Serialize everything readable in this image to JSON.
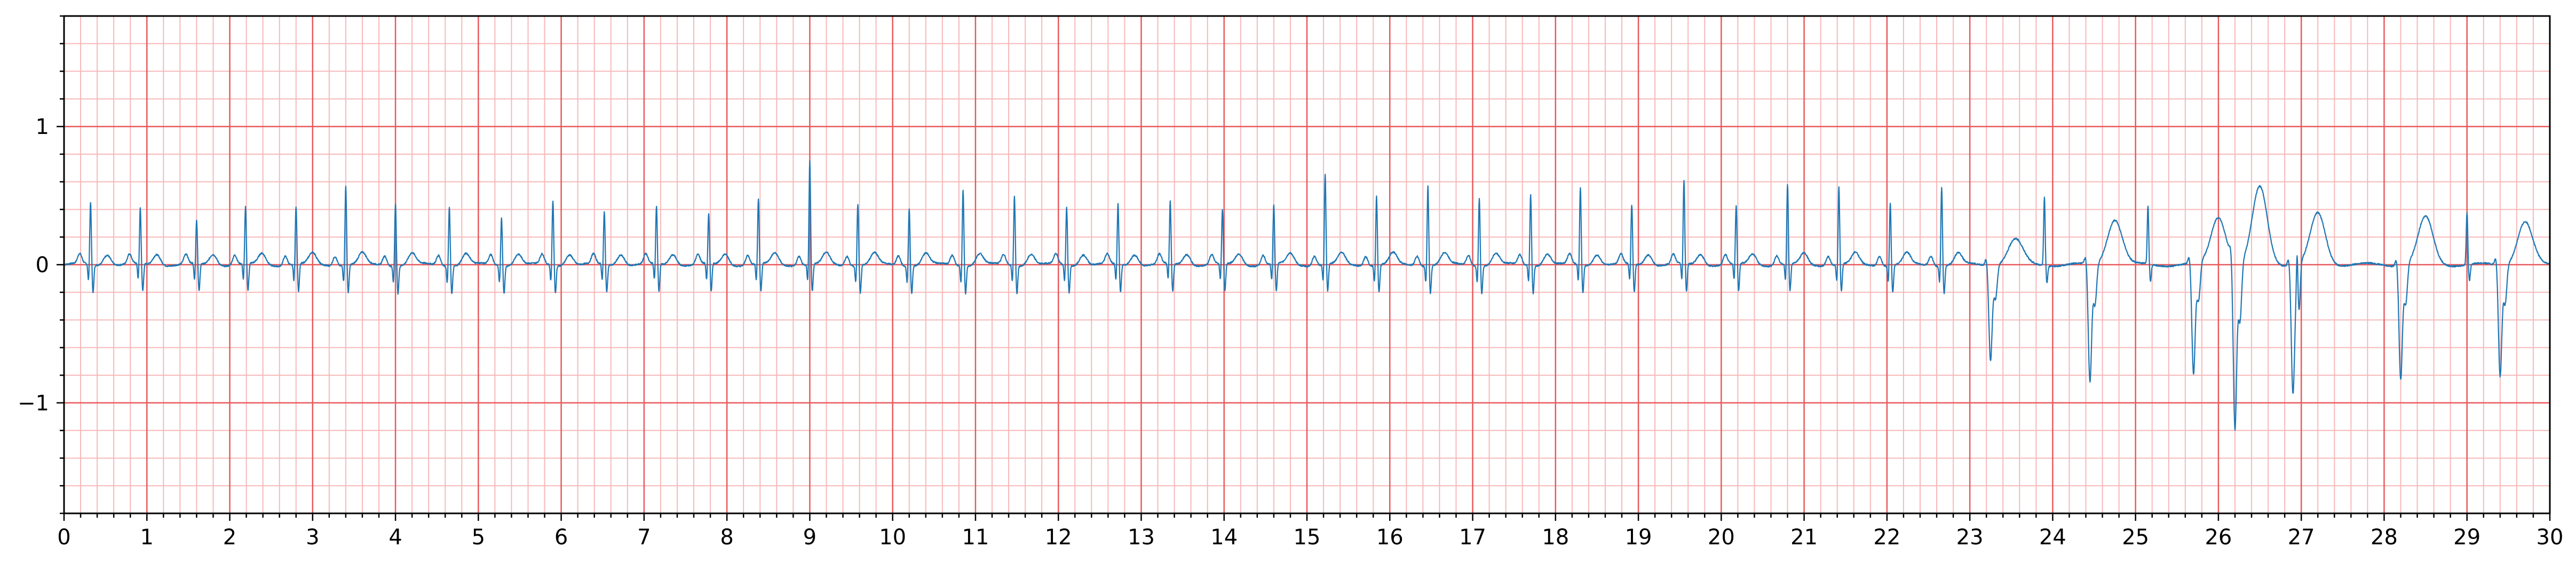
{
  "chart_data": {
    "type": "line",
    "title": "",
    "xlabel": "",
    "ylabel": "",
    "xlim": [
      0,
      30
    ],
    "ylim": [
      -1.8,
      1.8
    ],
    "x_ticks": [
      "0",
      "1",
      "2",
      "3",
      "4",
      "5",
      "6",
      "7",
      "8",
      "9",
      "10",
      "11",
      "12",
      "13",
      "14",
      "15",
      "16",
      "17",
      "18",
      "19",
      "20",
      "21",
      "22",
      "23",
      "24",
      "25",
      "26",
      "27",
      "28",
      "29",
      "30"
    ],
    "y_ticks": [
      "1",
      "0",
      "−1"
    ],
    "y_tick_values": [
      1,
      0,
      -1
    ],
    "grid": {
      "major": true,
      "minor": true,
      "major_step": 1,
      "minor_step": 0.2,
      "style": "ECG paper"
    },
    "colors": {
      "trace": "#1f77b4",
      "major_grid": "#e8595c",
      "minor_grid": "#f7b8b9",
      "axis": "#000000"
    },
    "series": [
      {
        "beats_r_peak": [
          [
            0.32,
            0.45
          ],
          [
            0.92,
            0.4
          ],
          [
            1.6,
            0.31
          ],
          [
            2.19,
            0.41
          ],
          [
            2.8,
            0.42
          ],
          [
            3.4,
            0.58
          ],
          [
            4.0,
            0.45
          ],
          [
            4.65,
            0.43
          ],
          [
            5.28,
            0.35
          ],
          [
            5.9,
            0.47
          ],
          [
            6.52,
            0.38
          ],
          [
            7.15,
            0.42
          ],
          [
            7.78,
            0.36
          ],
          [
            8.38,
            0.47
          ],
          [
            9.0,
            0.75
          ],
          [
            9.58,
            0.45
          ],
          [
            10.2,
            0.42
          ],
          [
            10.85,
            0.55
          ],
          [
            11.47,
            0.51
          ],
          [
            12.1,
            0.42
          ],
          [
            12.72,
            0.44
          ],
          [
            13.35,
            0.45
          ],
          [
            13.98,
            0.39
          ],
          [
            14.6,
            0.43
          ],
          [
            15.22,
            0.65
          ],
          [
            15.84,
            0.5
          ],
          [
            16.46,
            0.58
          ],
          [
            17.08,
            0.49
          ],
          [
            17.7,
            0.52
          ],
          [
            18.3,
            0.56
          ],
          [
            18.92,
            0.43
          ],
          [
            19.55,
            0.6
          ],
          [
            20.18,
            0.42
          ],
          [
            20.8,
            0.57
          ],
          [
            21.42,
            0.56
          ],
          [
            22.04,
            0.45
          ],
          [
            22.66,
            0.57
          ]
        ],
        "beats_wide_complex": [
          [
            23.25,
            -0.68,
            0.18
          ],
          [
            24.45,
            -0.85,
            0.33
          ],
          [
            25.7,
            -0.8,
            0.35
          ],
          [
            26.2,
            -1.22,
            0.56
          ],
          [
            26.9,
            -0.93,
            0.37
          ],
          [
            28.2,
            -0.82,
            0.34
          ],
          [
            29.4,
            -0.8,
            0.31
          ]
        ],
        "beats_narrow_late": [
          [
            23.9,
            0.5
          ],
          [
            25.15,
            0.42
          ],
          [
            26.95,
            0.38
          ],
          [
            29.0,
            0.38
          ]
        ]
      }
    ]
  }
}
